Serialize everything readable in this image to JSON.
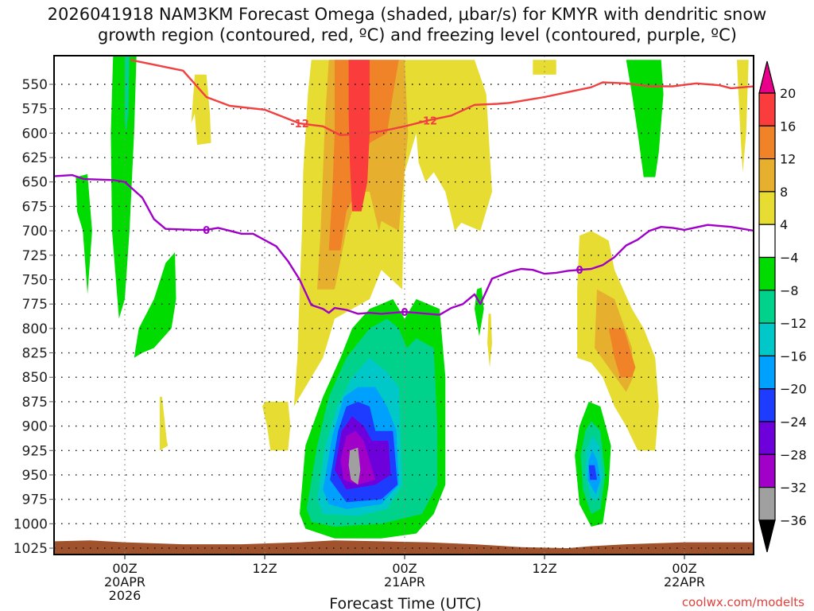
{
  "chart_data": {
    "type": "heatmap",
    "title_line1": "2026041918 NAM3KM Forecast Omega (shaded, μbar/s) for KMYR with dendritic snow",
    "title_line2": "growth region (contoured, red, ºC) and freezing level (contoured, purple, ºC)",
    "xlabel": "Forecast Time (UTC)",
    "ylabel": "",
    "credit": "coolwx.com/modelts",
    "x_range_hours": [
      -6,
      54
    ],
    "x_ticks": [
      {
        "hour": 0,
        "lines": [
          "00Z",
          "20APR",
          "2026"
        ]
      },
      {
        "hour": 12,
        "lines": [
          "12Z"
        ]
      },
      {
        "hour": 24,
        "lines": [
          "00Z",
          "21APR"
        ]
      },
      {
        "hour": 36,
        "lines": [
          "12Z"
        ]
      },
      {
        "hour": 48,
        "lines": [
          "00Z",
          "22APR"
        ]
      }
    ],
    "y_range_hpa": [
      525,
      1035
    ],
    "y_ticks": [
      "550",
      "575",
      "600",
      "625",
      "650",
      "675",
      "700",
      "725",
      "750",
      "775",
      "800",
      "825",
      "850",
      "875",
      "900",
      "925",
      "950",
      "975",
      "1000",
      "1025"
    ],
    "grid": true,
    "colorbar": {
      "position": "right",
      "levels": [
        "20",
        "16",
        "12",
        "8",
        "4",
        "-4",
        "-8",
        "-12",
        "-16",
        "-20",
        "-24",
        "-28",
        "-32",
        "-36"
      ],
      "over_color": "#e8008a",
      "under_color": "#000000",
      "colors": [
        {
          "range": "16 to 20",
          "color": "#fa3c3c"
        },
        {
          "range": "12 to 16",
          "color": "#f08228"
        },
        {
          "range": "8 to 12",
          "color": "#e6af2d"
        },
        {
          "range": "4 to 8",
          "color": "#e6dc32"
        },
        {
          "range": "-4 to 4",
          "color": "#ffffff"
        },
        {
          "range": "-8 to -4",
          "color": "#00dc00"
        },
        {
          "range": "-12 to -8",
          "color": "#00d28c"
        },
        {
          "range": "-16 to -12",
          "color": "#00c8c8"
        },
        {
          "range": "-20 to -16",
          "color": "#00a0ff"
        },
        {
          "range": "-24 to -20",
          "color": "#1e3cff"
        },
        {
          "range": "-28 to -24",
          "color": "#6e00dc"
        },
        {
          "range": "-32 to -28",
          "color": "#a000c8"
        },
        {
          "range": "-36 to -32",
          "color": "#a0a0a0"
        }
      ]
    },
    "ground_color": "#a0522d",
    "contours": [
      {
        "name": "dendritic-growth-minus12",
        "label": "-12",
        "color": "#f04040",
        "points_hour_hpa": [
          [
            0.5,
            525
          ],
          [
            5,
            536
          ],
          [
            7,
            563
          ],
          [
            9,
            572
          ],
          [
            12,
            576
          ],
          [
            15,
            590
          ],
          [
            17,
            593
          ],
          [
            18.5,
            602
          ],
          [
            20,
            601
          ],
          [
            22,
            598
          ],
          [
            24,
            593
          ],
          [
            26,
            587
          ],
          [
            28,
            582
          ],
          [
            30,
            571
          ],
          [
            32,
            570
          ],
          [
            33,
            569
          ],
          [
            35,
            565
          ],
          [
            36,
            563
          ],
          [
            38,
            558
          ],
          [
            40,
            553
          ],
          [
            41,
            548
          ],
          [
            43,
            549
          ],
          [
            45,
            552
          ],
          [
            47,
            552
          ],
          [
            49,
            549
          ],
          [
            51,
            551
          ],
          [
            52,
            554
          ],
          [
            54,
            552
          ]
        ],
        "label_positions_hour": [
          15,
          26
        ]
      },
      {
        "name": "freezing-level-0",
        "label": "0",
        "color": "#a000c8",
        "points_hour_hpa": [
          [
            -6,
            644
          ],
          [
            -4.5,
            643
          ],
          [
            -3.5,
            647
          ],
          [
            -1,
            648
          ],
          [
            0,
            650
          ],
          [
            1.5,
            666
          ],
          [
            2.5,
            688
          ],
          [
            3.5,
            698
          ],
          [
            6,
            699
          ],
          [
            7,
            699
          ],
          [
            8,
            697
          ],
          [
            9,
            700
          ],
          [
            10,
            703
          ],
          [
            11,
            703
          ],
          [
            13,
            716
          ],
          [
            14,
            731
          ],
          [
            15,
            750
          ],
          [
            16,
            776
          ],
          [
            17,
            780
          ],
          [
            17.5,
            784
          ],
          [
            18,
            779
          ],
          [
            19,
            781
          ],
          [
            20,
            785
          ],
          [
            21,
            784
          ],
          [
            22,
            785
          ],
          [
            23,
            784
          ],
          [
            24,
            783
          ],
          [
            25,
            784
          ],
          [
            26,
            785
          ],
          [
            27,
            786
          ],
          [
            28,
            779
          ],
          [
            29,
            775
          ],
          [
            30,
            765
          ],
          [
            30.5,
            775
          ],
          [
            31.5,
            749
          ],
          [
            33,
            742
          ],
          [
            34,
            739
          ],
          [
            35,
            740
          ],
          [
            36,
            744
          ],
          [
            37,
            743
          ],
          [
            38,
            741
          ],
          [
            39,
            740
          ],
          [
            40,
            739
          ],
          [
            41,
            735
          ],
          [
            42,
            727
          ],
          [
            43,
            715
          ],
          [
            44,
            709
          ],
          [
            45,
            700
          ],
          [
            46,
            696
          ],
          [
            47,
            697
          ],
          [
            48,
            699
          ],
          [
            50,
            694
          ],
          [
            52,
            696
          ],
          [
            54,
            700
          ]
        ],
        "label_positions_hour": [
          7,
          24,
          39
        ]
      }
    ]
  }
}
